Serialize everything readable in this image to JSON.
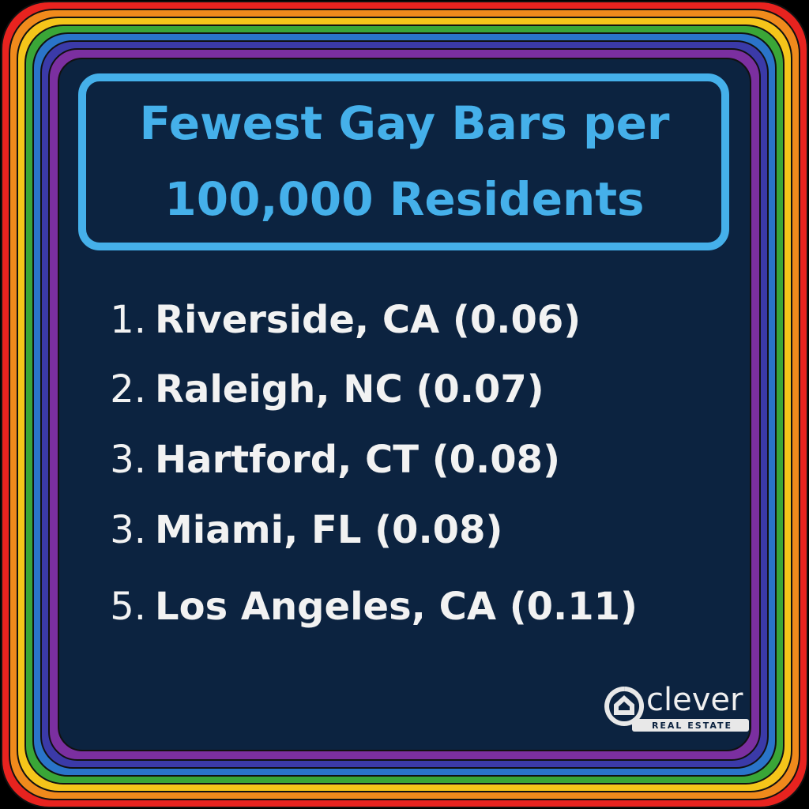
{
  "header": {
    "title_lines": [
      "Fewest Gay Bars per",
      "100,000 Residents"
    ]
  },
  "list": {
    "items": [
      {
        "rank": "1.",
        "text": "Riverside, CA (0.06)"
      },
      {
        "rank": "2.",
        "text": "Raleigh, NC (0.07)"
      },
      {
        "rank": "3.",
        "text": "Hartford, CT (0.08)"
      },
      {
        "rank": "3.",
        "text": "Miami, FL (0.08)"
      },
      {
        "rank": "5.",
        "text": "Los Angeles, CA (0.11)"
      }
    ]
  },
  "logo": {
    "name": "clever",
    "tagline": "REAL ESTATE"
  }
}
